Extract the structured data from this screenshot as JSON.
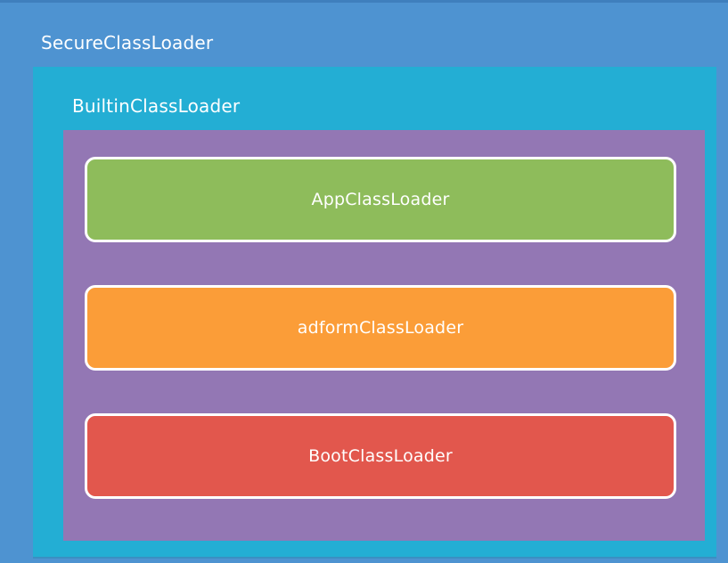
{
  "diagram": {
    "outer": {
      "label": "SecureClassLoader",
      "color": "#4e93d1"
    },
    "builtin": {
      "label": "BuiltinClassLoader",
      "color": "#23aed4"
    },
    "inner_container_color": "#9377b4",
    "loaders": [
      {
        "label": "AppClassLoader",
        "color": "#8ebc5b"
      },
      {
        "label": "adformClassLoader",
        "color": "#fb9d38"
      },
      {
        "label": "BootClassLoader",
        "color": "#e2574d"
      }
    ]
  }
}
